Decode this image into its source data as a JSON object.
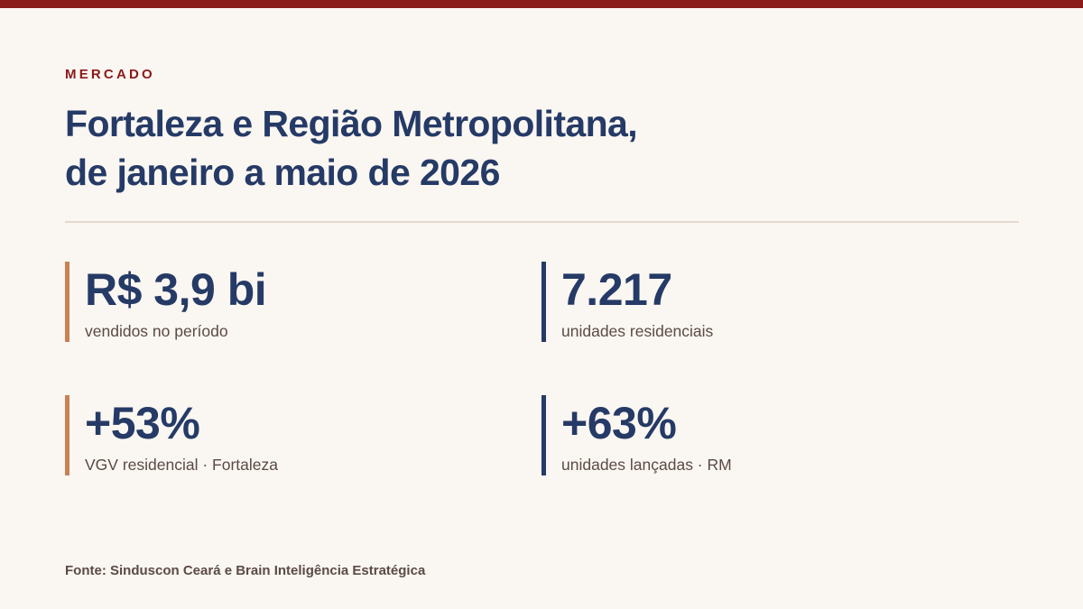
{
  "colors": {
    "background": "#faf6f1",
    "brand_red": "#8b1a1a",
    "navy": "#253a66",
    "accent_orange": "#c98156",
    "text_muted": "#5b4a45",
    "rule": "#e4d8d0"
  },
  "header": {
    "kicker": "MERCADO",
    "title_lines": [
      "Fortaleza e Região Metropolitana,",
      "de janeiro a maio de 2026"
    ]
  },
  "stats": [
    {
      "value": "R$ 3,9 bi",
      "label": "vendidos no período",
      "accent": "#c98156"
    },
    {
      "value": "7.217",
      "label": "unidades residenciais",
      "accent": "#253a66"
    },
    {
      "value": "+53%",
      "label": "VGV residencial · Fortaleza",
      "accent": "#c98156"
    },
    {
      "value": "+63%",
      "label": "unidades lançadas · RM",
      "accent": "#253a66"
    }
  ],
  "footer": {
    "source_prefix": "Fonte:",
    "source_text": "Sinduscon Ceará e Brain Inteligência Estratégica"
  }
}
